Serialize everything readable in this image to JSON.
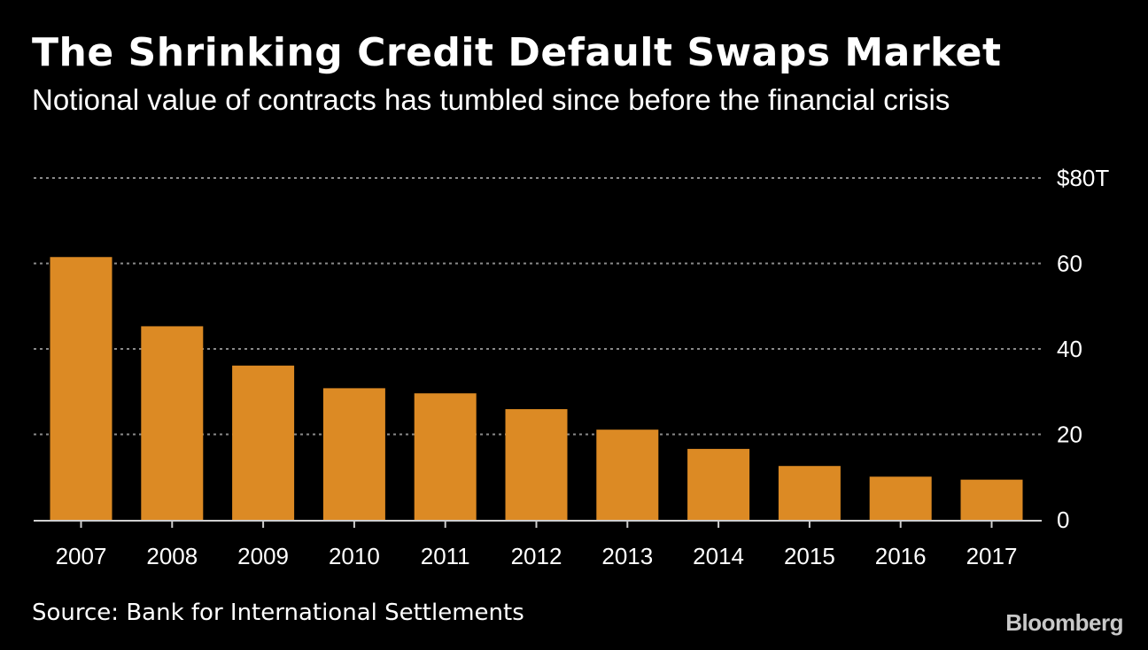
{
  "title": "The Shrinking Credit Default Swaps Market",
  "subtitle": "Notional value of contracts has tumbled since before the financial crisis",
  "source": "Source: Bank for International Settlements",
  "brand": "Bloomberg",
  "colors": {
    "background": "#000000",
    "bar": "#dc8a24",
    "grid": "#8a8a8a",
    "text": "#ffffff"
  },
  "chart_data": {
    "type": "bar",
    "categories": [
      "2007",
      "2008",
      "2009",
      "2010",
      "2011",
      "2012",
      "2013",
      "2014",
      "2015",
      "2016",
      "2017"
    ],
    "values": [
      61.5,
      45.3,
      36.1,
      30.8,
      29.6,
      25.9,
      21.1,
      16.6,
      12.6,
      10.1,
      9.4
    ],
    "ylim": [
      0,
      80
    ],
    "yticks": [
      0,
      20,
      40,
      60,
      80
    ],
    "ytick_labels": [
      "0",
      "20",
      "40",
      "60",
      "$80T"
    ],
    "title": "The Shrinking Credit Default Swaps Market",
    "subtitle": "Notional value of contracts has tumbled since before the financial crisis",
    "xlabel": "",
    "ylabel": "",
    "grid": true,
    "legend": "none"
  }
}
